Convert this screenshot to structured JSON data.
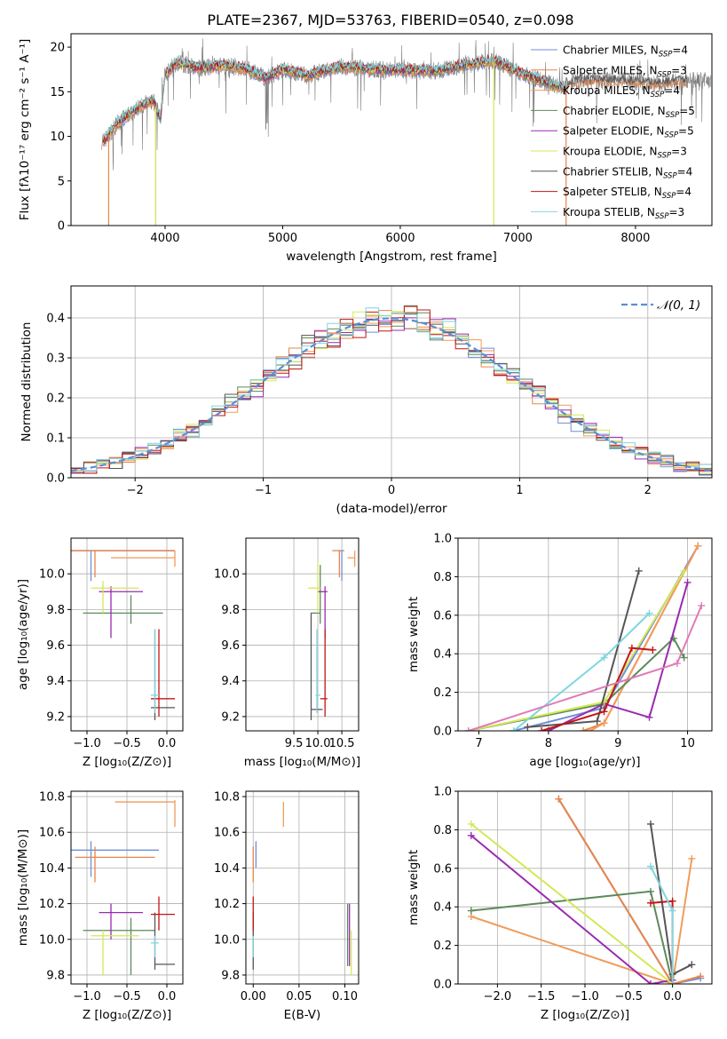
{
  "figure": {
    "title": "PLATE=2367, MJD=53763, FIBERID=0540, z=0.098"
  },
  "colors": {
    "Chabrier MILES": "#6f8fd8",
    "Salpeter MILES": "#e8864a",
    "Kroupa MILES": "#f09c5a",
    "Chabrier ELODIE": "#5c8a5c",
    "Salpeter ELODIE": "#9a2ab0",
    "Kroupa ELODIE": "#d4e857",
    "Chabrier STELIB": "#555555",
    "Salpeter STELIB": "#c41414",
    "Kroupa STELIB": "#7fd6df"
  },
  "chart_data": [
    {
      "id": "spectrum",
      "type": "line",
      "xlabel": "wavelength [Angstrom, rest frame]",
      "ylabel": "Flux [fλ10⁻¹⁷ erg cm⁻² s⁻¹ A⁻¹]",
      "xlim": [
        3200,
        8650
      ],
      "ylim": [
        0,
        21.5
      ],
      "xticks": [
        4000,
        5000,
        6000,
        7000,
        8000
      ],
      "yticks": [
        0,
        5,
        10,
        15,
        20
      ],
      "legend_position": "right",
      "legend": [
        {
          "label": "Chabrier MILES, N",
          "sub": "SSP",
          "suffix": "=4",
          "series": "Chabrier MILES"
        },
        {
          "label": "Salpeter MILES, N",
          "sub": "SSP",
          "suffix": "=3",
          "series": "Salpeter MILES"
        },
        {
          "label": "Kroupa MILES, N",
          "sub": "SSP",
          "suffix": "=4",
          "series": "Kroupa MILES"
        },
        {
          "label": "Chabrier ELODIE, N",
          "sub": "SSP",
          "suffix": "=5",
          "series": "Chabrier ELODIE"
        },
        {
          "label": "Salpeter ELODIE, N",
          "sub": "SSP",
          "suffix": "=5",
          "series": "Salpeter ELODIE"
        },
        {
          "label": "Kroupa ELODIE, N",
          "sub": "SSP",
          "suffix": "=3",
          "series": "Kroupa ELODIE"
        },
        {
          "label": "Chabrier STELIB, N",
          "sub": "SSP",
          "suffix": "=4",
          "series": "Chabrier STELIB"
        },
        {
          "label": "Salpeter STELIB, N",
          "sub": "SSP",
          "suffix": "=4",
          "series": "Salpeter STELIB"
        },
        {
          "label": "Kroupa STELIB, N",
          "sub": "SSP",
          "suffix": "=3",
          "series": "Kroupa STELIB"
        }
      ],
      "continuum": [
        [
          3480,
          9.5
        ],
        [
          3600,
          11.5
        ],
        [
          3700,
          12.5
        ],
        [
          3800,
          13.5
        ],
        [
          3900,
          14
        ],
        [
          3960,
          12
        ],
        [
          4000,
          17
        ],
        [
          4100,
          18.3
        ],
        [
          4300,
          17.6
        ],
        [
          4500,
          18
        ],
        [
          4700,
          17.5
        ],
        [
          4860,
          16.5
        ],
        [
          5000,
          17.5
        ],
        [
          5200,
          16.8
        ],
        [
          5500,
          17.8
        ],
        [
          5800,
          17.5
        ],
        [
          6100,
          17.4
        ],
        [
          6300,
          17.3
        ],
        [
          6560,
          18
        ],
        [
          6800,
          18.5
        ],
        [
          7000,
          17.2
        ],
        [
          7200,
          16.2
        ],
        [
          7300,
          15.8
        ],
        [
          7400,
          15.4
        ]
      ],
      "continuum_red": [
        [
          7420,
          16
        ],
        [
          7600,
          16.3
        ],
        [
          7900,
          16.2
        ],
        [
          8200,
          16
        ],
        [
          8450,
          16.3
        ]
      ],
      "drops": [
        {
          "series": "Salpeter MILES",
          "x": 3520,
          "y": 0
        },
        {
          "series": "Kroupa MILES",
          "x": 3920,
          "y": 0
        },
        {
          "series": "Kroupa ELODIE",
          "x": 3920,
          "y": 0
        },
        {
          "series": "Kroupa ELODIE",
          "x": 6795,
          "y": 0
        },
        {
          "series": "Salpeter MILES",
          "x": 7410,
          "y": 0
        }
      ]
    },
    {
      "id": "residuals",
      "type": "area",
      "xlabel": "(data-model)/error",
      "ylabel": "Normed distribution",
      "xlim": [
        -2.5,
        2.5
      ],
      "ylim": [
        0,
        0.48
      ],
      "xticks": [
        -2,
        -1,
        0,
        1,
        2
      ],
      "yticks": [
        0.0,
        0.1,
        0.2,
        0.3,
        0.4
      ],
      "legend_position": "top-right",
      "legend": "𝒩(0, 1)",
      "gaussian": {
        "mean": 0,
        "sigma": 1
      }
    },
    {
      "id": "age-Z",
      "type": "scatter",
      "xlabel": "Z [log₁₀(Z/Z⊙)]",
      "ylabel": "age  [log₁₀(age/yr)]",
      "xlim": [
        -1.2,
        0.2
      ],
      "ylim": [
        9.12,
        10.2
      ],
      "xticks": [
        -1.0,
        -0.5,
        0.0
      ],
      "yticks": [
        9.2,
        9.4,
        9.6,
        9.8,
        10.0
      ],
      "points": [
        {
          "series": "Chabrier MILES",
          "x": -0.95,
          "y": 10.13,
          "xlo": -1.2,
          "xhi": 0.1,
          "ylo": 9.96,
          "yhi": 10.13
        },
        {
          "series": "Salpeter MILES",
          "x": -0.9,
          "y": 10.13,
          "xlo": -1.2,
          "xhi": 0.1,
          "ylo": 9.98,
          "yhi": 10.13
        },
        {
          "series": "Kroupa MILES",
          "x": 0.1,
          "y": 10.09,
          "xlo": -0.7,
          "xhi": 0.1,
          "ylo": 10.04,
          "yhi": 10.13
        },
        {
          "series": "Chabrier ELODIE",
          "x": -0.45,
          "y": 9.78,
          "xlo": -1.05,
          "xhi": -0.05,
          "ylo": 9.72,
          "yhi": 9.88
        },
        {
          "series": "Salpeter ELODIE",
          "x": -0.7,
          "y": 9.9,
          "xlo": -0.85,
          "xhi": -0.3,
          "ylo": 9.64,
          "yhi": 9.93
        },
        {
          "series": "Kroupa ELODIE",
          "x": -0.8,
          "y": 9.92,
          "xlo": -0.95,
          "xhi": -0.35,
          "ylo": 9.78,
          "yhi": 9.96
        },
        {
          "series": "Chabrier STELIB",
          "x": -0.15,
          "y": 9.25,
          "xlo": -0.2,
          "xhi": 0.1,
          "ylo": 9.18,
          "yhi": 9.69
        },
        {
          "series": "Salpeter STELIB",
          "x": -0.1,
          "y": 9.3,
          "xlo": -0.2,
          "xhi": 0.1,
          "ylo": 9.2,
          "yhi": 9.69
        },
        {
          "series": "Kroupa STELIB",
          "x": -0.15,
          "y": 9.32,
          "xlo": -0.2,
          "xhi": -0.1,
          "ylo": 9.22,
          "yhi": 9.69
        }
      ]
    },
    {
      "id": "age-mass",
      "type": "scatter",
      "xlabel": "mass [log₁₀(M/M⊙)]",
      "ylabel": "",
      "xlim": [
        8.5,
        10.85
      ],
      "ylim": [
        9.12,
        10.2
      ],
      "xticks": [
        9.5,
        10.0,
        10.5
      ],
      "yticks": [
        9.2,
        9.4,
        9.6,
        9.8,
        10.0
      ],
      "points": [
        {
          "series": "Chabrier MILES",
          "x": 10.5,
          "y": 10.13,
          "xlo": 10.45,
          "xhi": 10.55,
          "ylo": 9.96,
          "yhi": 10.13
        },
        {
          "series": "Salpeter MILES",
          "x": 10.45,
          "y": 10.13,
          "xlo": 10.3,
          "xhi": 10.5,
          "ylo": 9.98,
          "yhi": 10.13
        },
        {
          "series": "Kroupa MILES",
          "x": 10.77,
          "y": 10.09,
          "xlo": 10.62,
          "xhi": 10.78,
          "ylo": 10.04,
          "yhi": 10.13
        },
        {
          "series": "Chabrier ELODIE",
          "x": 10.05,
          "y": 9.78,
          "xlo": 9.85,
          "xhi": 10.05,
          "ylo": 9.72,
          "yhi": 10.05
        },
        {
          "series": "Salpeter ELODIE",
          "x": 10.15,
          "y": 9.9,
          "xlo": 10.0,
          "xhi": 10.2,
          "ylo": 9.64,
          "yhi": 9.93
        },
        {
          "series": "Kroupa ELODIE",
          "x": 10.0,
          "y": 9.92,
          "xlo": 9.8,
          "xhi": 10.05,
          "ylo": 9.78,
          "yhi": 10.07
        },
        {
          "series": "Chabrier STELIB",
          "x": 9.86,
          "y": 9.24,
          "xlo": 9.86,
          "xhi": 10.1,
          "ylo": 9.18,
          "yhi": 9.78
        },
        {
          "series": "Salpeter STELIB",
          "x": 10.15,
          "y": 9.3,
          "xlo": 10.05,
          "xhi": 10.2,
          "ylo": 9.2,
          "yhi": 9.69
        },
        {
          "series": "Kroupa STELIB",
          "x": 9.98,
          "y": 9.32,
          "xlo": 9.95,
          "xhi": 10.05,
          "ylo": 9.22,
          "yhi": 9.69
        }
      ]
    },
    {
      "id": "mass-weight-age",
      "type": "line",
      "xlabel": "age  [log₁₀(age/yr)]",
      "ylabel": "mass weight",
      "xlim": [
        6.7,
        10.35
      ],
      "ylim": [
        0,
        1.0
      ],
      "xticks": [
        7,
        8,
        9,
        10
      ],
      "yticks": [
        0.0,
        0.2,
        0.4,
        0.6,
        0.8,
        1.0
      ],
      "series": [
        {
          "series": "Chabrier MILES",
          "points": [
            [
              7.5,
              0.0
            ],
            [
              8.8,
              0.12
            ],
            [
              10.15,
              0.96
            ]
          ]
        },
        {
          "series": "Salpeter MILES",
          "points": [
            [
              8.5,
              0.0
            ],
            [
              8.8,
              0.04
            ],
            [
              10.15,
              0.96
            ]
          ]
        },
        {
          "series": "Kroupa MILES",
          "points": [
            [
              8.6,
              0.0
            ],
            [
              8.8,
              0.04
            ],
            [
              10.15,
              0.96
            ]
          ]
        },
        {
          "series": "Chabrier ELODIE",
          "points": [
            [
              6.85,
              0.0
            ],
            [
              8.8,
              0.14
            ],
            [
              9.8,
              0.48
            ],
            [
              9.95,
              0.38
            ]
          ]
        },
        {
          "series": "Salpeter ELODIE",
          "points": [
            [
              8.0,
              0.0
            ],
            [
              8.8,
              0.14
            ],
            [
              9.45,
              0.07
            ],
            [
              10.0,
              0.77
            ]
          ]
        },
        {
          "series": "Kroupa ELODIE",
          "points": [
            [
              6.85,
              0.0
            ],
            [
              8.8,
              0.15
            ],
            [
              9.95,
              0.83
            ]
          ]
        },
        {
          "series": "Chabrier STELIB",
          "points": [
            [
              7.7,
              0.02
            ],
            [
              8.7,
              0.05
            ],
            [
              9.3,
              0.83
            ]
          ]
        },
        {
          "series": "Salpeter STELIB",
          "points": [
            [
              7.9,
              0.0
            ],
            [
              8.8,
              0.1
            ],
            [
              9.2,
              0.43
            ],
            [
              9.5,
              0.42
            ]
          ]
        },
        {
          "series": "Kroupa STELIB",
          "points": [
            [
              7.5,
              0.0
            ],
            [
              8.8,
              0.38
            ],
            [
              9.45,
              0.61
            ]
          ]
        },
        {
          "series": "Kroupa MILES",
          "points": [
            [
              6.85,
              0.0
            ],
            [
              9.85,
              0.35
            ],
            [
              10.2,
              0.65
            ]
          ],
          "alt": "pink"
        }
      ]
    },
    {
      "id": "mass-Z",
      "type": "scatter",
      "xlabel": "Z [log₁₀(Z/Z⊙)]",
      "ylabel": "mass [log₁₀(M/M⊙)]",
      "xlim": [
        -1.2,
        0.2
      ],
      "ylim": [
        9.75,
        10.83
      ],
      "xticks": [
        -1.0,
        -0.5,
        0.0
      ],
      "yticks": [
        9.8,
        10.0,
        10.2,
        10.4,
        10.6,
        10.8
      ],
      "points": [
        {
          "series": "Chabrier MILES",
          "x": -0.95,
          "y": 10.5,
          "xlo": -1.2,
          "xhi": -0.1,
          "ylo": 10.35,
          "yhi": 10.55
        },
        {
          "series": "Salpeter MILES",
          "x": -0.9,
          "y": 10.46,
          "xlo": -1.15,
          "xhi": -0.15,
          "ylo": 10.32,
          "yhi": 10.52
        },
        {
          "series": "Kroupa MILES",
          "x": 0.1,
          "y": 10.77,
          "xlo": -0.65,
          "xhi": 0.1,
          "ylo": 10.63,
          "yhi": 10.78
        },
        {
          "series": "Chabrier ELODIE",
          "x": -0.45,
          "y": 10.05,
          "xlo": -1.05,
          "xhi": -0.15,
          "ylo": 9.8,
          "yhi": 10.12
        },
        {
          "series": "Salpeter ELODIE",
          "x": -0.7,
          "y": 10.15,
          "xlo": -0.85,
          "xhi": -0.3,
          "ylo": 10.0,
          "yhi": 10.2
        },
        {
          "series": "Kroupa ELODIE",
          "x": -0.8,
          "y": 10.02,
          "xlo": -0.95,
          "xhi": -0.35,
          "ylo": 9.8,
          "yhi": 10.05
        },
        {
          "series": "Chabrier STELIB",
          "x": -0.15,
          "y": 9.86,
          "xlo": -0.15,
          "xhi": 0.1,
          "ylo": 9.83,
          "yhi": 10.15
        },
        {
          "series": "Salpeter STELIB",
          "x": -0.1,
          "y": 10.14,
          "xlo": -0.2,
          "xhi": 0.1,
          "ylo": 10.05,
          "yhi": 10.24
        },
        {
          "series": "Kroupa STELIB",
          "x": -0.15,
          "y": 9.98,
          "xlo": -0.2,
          "xhi": -0.1,
          "ylo": 9.9,
          "yhi": 10.02
        }
      ]
    },
    {
      "id": "mass-EBV",
      "type": "scatter",
      "xlabel": "E(B-V)",
      "ylabel": "",
      "xlim": [
        -0.008,
        0.115
      ],
      "ylim": [
        9.75,
        10.83
      ],
      "xticks": [
        0.0,
        0.05,
        0.1
      ],
      "xticklabels": [
        "0.00",
        "0.05",
        "0.10"
      ],
      "yticks": [
        9.8,
        10.0,
        10.2,
        10.4,
        10.6,
        10.8
      ],
      "points": [
        {
          "series": "Chabrier MILES",
          "x": 0.003,
          "y": 10.5,
          "ylo": 10.4,
          "yhi": 10.55
        },
        {
          "series": "Salpeter MILES",
          "x": 0.0,
          "y": 10.46,
          "ylo": 10.32,
          "yhi": 10.52
        },
        {
          "series": "Kroupa MILES",
          "x": 0.033,
          "y": 10.7,
          "ylo": 10.63,
          "yhi": 10.77
        },
        {
          "series": "Chabrier ELODIE",
          "x": 0.103,
          "y": 10.05,
          "ylo": 9.85,
          "yhi": 10.2
        },
        {
          "series": "Salpeter ELODIE",
          "x": 0.105,
          "y": 10.1,
          "ylo": 9.85,
          "yhi": 10.2
        },
        {
          "series": "Kroupa ELODIE",
          "x": 0.107,
          "y": 10.0,
          "ylo": 9.8,
          "yhi": 10.05
        },
        {
          "series": "Chabrier STELIB",
          "x": 0.0,
          "y": 9.95,
          "ylo": 9.83,
          "yhi": 10.15
        },
        {
          "series": "Salpeter STELIB",
          "x": 0.0,
          "y": 10.14,
          "ylo": 10.05,
          "yhi": 10.24
        },
        {
          "series": "Kroupa STELIB",
          "x": 0.0,
          "y": 9.98,
          "ylo": 9.9,
          "yhi": 10.02
        }
      ]
    },
    {
      "id": "mass-weight-Z",
      "type": "line",
      "xlabel": "Z [log₁₀(Z/Z⊙)]",
      "ylabel": "mass weight",
      "xlim": [
        -2.45,
        0.45
      ],
      "ylim": [
        0,
        1.0
      ],
      "xticks": [
        -2.0,
        -1.5,
        -1.0,
        -0.5,
        0.0
      ],
      "yticks": [
        0.0,
        0.2,
        0.4,
        0.6,
        0.8,
        1.0
      ],
      "series": [
        {
          "series": "Chabrier MILES",
          "points": [
            [
              -1.3,
              0.96
            ],
            [
              0.0,
              0.0
            ],
            [
              0.32,
              0.03
            ]
          ]
        },
        {
          "series": "Salpeter MILES",
          "points": [
            [
              -1.3,
              0.96
            ],
            [
              0.0,
              0.0
            ],
            [
              0.32,
              0.04
            ]
          ]
        },
        {
          "series": "Kroupa MILES",
          "points": [
            [
              -2.3,
              0.35
            ],
            [
              0.0,
              0.0
            ],
            [
              0.22,
              0.65
            ]
          ]
        },
        {
          "series": "Chabrier ELODIE",
          "points": [
            [
              -2.3,
              0.38
            ],
            [
              -0.25,
              0.48
            ],
            [
              0.0,
              0.0
            ]
          ]
        },
        {
          "series": "Salpeter ELODIE",
          "points": [
            [
              -2.3,
              0.77
            ],
            [
              -0.25,
              0.0
            ],
            [
              0.0,
              0.02
            ]
          ]
        },
        {
          "series": "Kroupa ELODIE",
          "points": [
            [
              -2.3,
              0.83
            ],
            [
              0.0,
              0.0
            ]
          ]
        },
        {
          "series": "Chabrier STELIB",
          "points": [
            [
              -0.25,
              0.83
            ],
            [
              0.0,
              0.05
            ],
            [
              0.22,
              0.1
            ]
          ]
        },
        {
          "series": "Salpeter STELIB",
          "points": [
            [
              -0.25,
              0.42
            ],
            [
              0.0,
              0.43
            ],
            [
              0.0,
              0.0
            ]
          ]
        },
        {
          "series": "Kroupa STELIB",
          "points": [
            [
              -0.25,
              0.61
            ],
            [
              0.0,
              0.38
            ],
            [
              0.0,
              0.0
            ]
          ]
        }
      ]
    }
  ]
}
